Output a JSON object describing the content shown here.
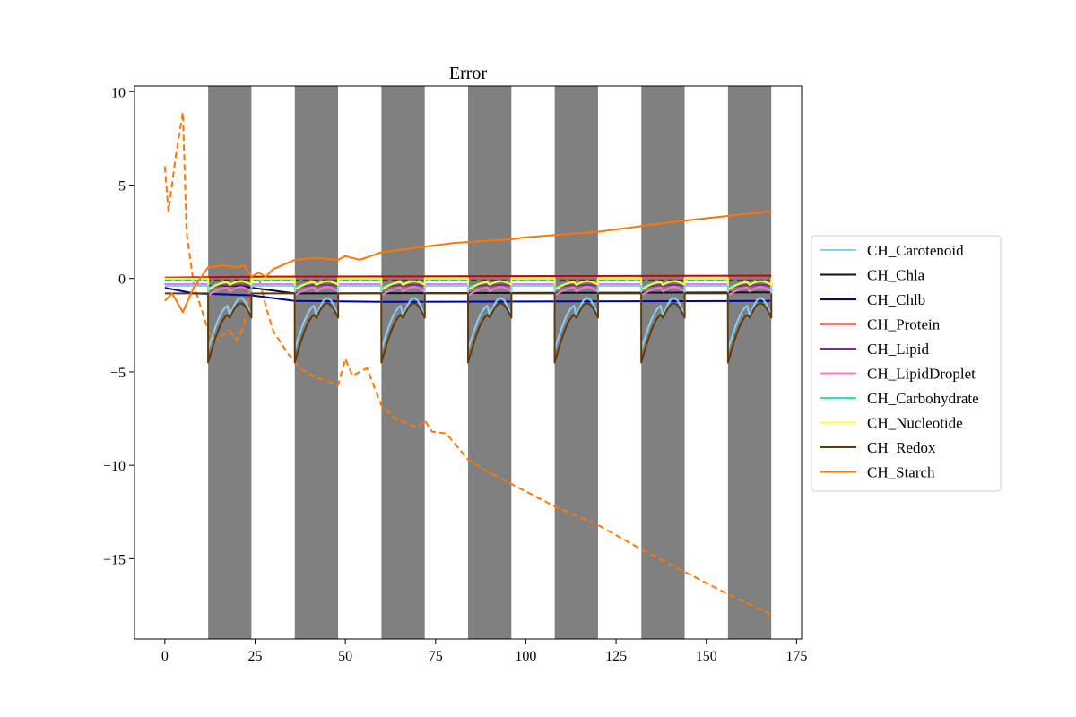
{
  "chart_data": {
    "type": "line",
    "title": "Error",
    "xlabel": "",
    "ylabel": "",
    "xlim": [
      -8.4,
      176.4
    ],
    "ylim": [
      -19.3,
      10.3
    ],
    "xticks": [
      0,
      25,
      50,
      75,
      100,
      125,
      150,
      175
    ],
    "yticks": [
      10,
      5,
      0,
      -5,
      -10,
      -15
    ],
    "ytick_labels": [
      "10",
      "5",
      "0",
      "−5",
      "−10",
      "−15"
    ],
    "grid": false,
    "legend_position": "right",
    "dark_periods": [
      [
        12,
        24
      ],
      [
        36,
        48
      ],
      [
        60,
        72
      ],
      [
        84,
        96
      ],
      [
        108,
        120
      ],
      [
        132,
        144
      ],
      [
        156,
        168
      ]
    ],
    "dark_period_color": "#808080",
    "series": [
      {
        "name": "CH_Carotenoid",
        "color": "#87CEFA",
        "style": "solid",
        "pattern": "periodic",
        "base": -0.4,
        "dip": -3.8,
        "sub_dip": -2.0
      },
      {
        "name": "CH_Chla",
        "color": "#0A1128",
        "style": "solid",
        "pattern": "steps",
        "points": [
          [
            0,
            -0.3
          ],
          [
            12,
            -0.4
          ],
          [
            20,
            -0.4
          ],
          [
            36,
            -0.8
          ],
          [
            168,
            -0.75
          ]
        ]
      },
      {
        "name": "CH_Chlb",
        "color": "#0000A0",
        "style": "solid",
        "pattern": "steps",
        "points": [
          [
            0,
            -0.5
          ],
          [
            8,
            -0.8
          ],
          [
            24,
            -0.9
          ],
          [
            36,
            -1.2
          ],
          [
            60,
            -1.25
          ],
          [
            168,
            -1.2
          ]
        ]
      },
      {
        "name": "CH_Protein",
        "color": "#CC0000",
        "style": "solid",
        "pattern": "steps",
        "points": [
          [
            0,
            0.05
          ],
          [
            30,
            0.1
          ],
          [
            168,
            0.15
          ]
        ]
      },
      {
        "name": "CH_Lipid",
        "color": "#7B2D8E",
        "style": "solid",
        "pattern": "periodic",
        "base": -0.3,
        "dip": -0.5,
        "sub_dip": -0.4
      },
      {
        "name": "CH_LipidDroplet",
        "color": "#FF77C8",
        "style": "solid",
        "pattern": "periodic",
        "base": -0.3,
        "dip": -0.9,
        "sub_dip": -0.7
      },
      {
        "name": "CH_Carbohydrate",
        "color": "#2BE0C8",
        "style": "solid",
        "pattern": "periodic",
        "base": -0.05,
        "dip": -0.5,
        "sub_dip": -0.3
      },
      {
        "name": "CH_Nucleotide",
        "color": "#FFFF33",
        "style": "solid",
        "pattern": "periodic",
        "base": 0.0,
        "dip": -0.6,
        "sub_dip": -0.35
      },
      {
        "name": "CH_Redox",
        "color": "#5C3A0A",
        "style": "solid",
        "pattern": "periodic",
        "base": -0.8,
        "dip": -4.5,
        "sub_dip": -2.1
      },
      {
        "name": "CH_Starch",
        "color": "#FF7700",
        "style": "solid",
        "pattern": "points",
        "points": [
          [
            0,
            -1.2
          ],
          [
            2,
            -0.8
          ],
          [
            5,
            -1.8
          ],
          [
            8,
            -0.5
          ],
          [
            12,
            0.6
          ],
          [
            16,
            0.7
          ],
          [
            20,
            0.6
          ],
          [
            22,
            0.7
          ],
          [
            24,
            0.1
          ],
          [
            26,
            0.3
          ],
          [
            28,
            0.1
          ],
          [
            30,
            0.5
          ],
          [
            36,
            1.0
          ],
          [
            42,
            1.1
          ],
          [
            48,
            1.0
          ],
          [
            50,
            1.2
          ],
          [
            52,
            1.1
          ],
          [
            54,
            1.0
          ],
          [
            60,
            1.4
          ],
          [
            72,
            1.7
          ],
          [
            80,
            1.9
          ],
          [
            96,
            2.1
          ],
          [
            100,
            2.2
          ],
          [
            120,
            2.5
          ],
          [
            144,
            3.1
          ],
          [
            168,
            3.6
          ]
        ]
      }
    ],
    "dashed_series": [
      {
        "color": "#FF7700",
        "points": [
          [
            0,
            6.0
          ],
          [
            1,
            3.6
          ],
          [
            3,
            6.5
          ],
          [
            5,
            8.9
          ],
          [
            6,
            2.5
          ],
          [
            8,
            -0.3
          ],
          [
            12,
            -2.8
          ],
          [
            14,
            -3.3
          ],
          [
            18,
            -2.8
          ],
          [
            20,
            -3.3
          ],
          [
            22,
            -2.5
          ],
          [
            24,
            0.0
          ],
          [
            26,
            0.1
          ],
          [
            28,
            -1.5
          ],
          [
            30,
            -2.8
          ],
          [
            34,
            -4.0
          ],
          [
            38,
            -4.9
          ],
          [
            42,
            -5.3
          ],
          [
            48,
            -5.7
          ],
          [
            50,
            -4.3
          ],
          [
            52,
            -5.2
          ],
          [
            56,
            -4.8
          ],
          [
            60,
            -6.8
          ],
          [
            64,
            -7.5
          ],
          [
            70,
            -8.0
          ],
          [
            72,
            -7.6
          ],
          [
            74,
            -8.2
          ],
          [
            78,
            -8.3
          ],
          [
            84,
            -9.7
          ],
          [
            90,
            -10.4
          ],
          [
            96,
            -11.0
          ],
          [
            108,
            -12.2
          ],
          [
            120,
            -13.2
          ],
          [
            132,
            -14.5
          ],
          [
            144,
            -15.7
          ],
          [
            156,
            -16.9
          ],
          [
            168,
            -18.0
          ]
        ]
      },
      {
        "color": "#5C3A0A",
        "points": [
          [
            0,
            -0.1
          ],
          [
            168,
            -0.1
          ]
        ]
      }
    ]
  }
}
